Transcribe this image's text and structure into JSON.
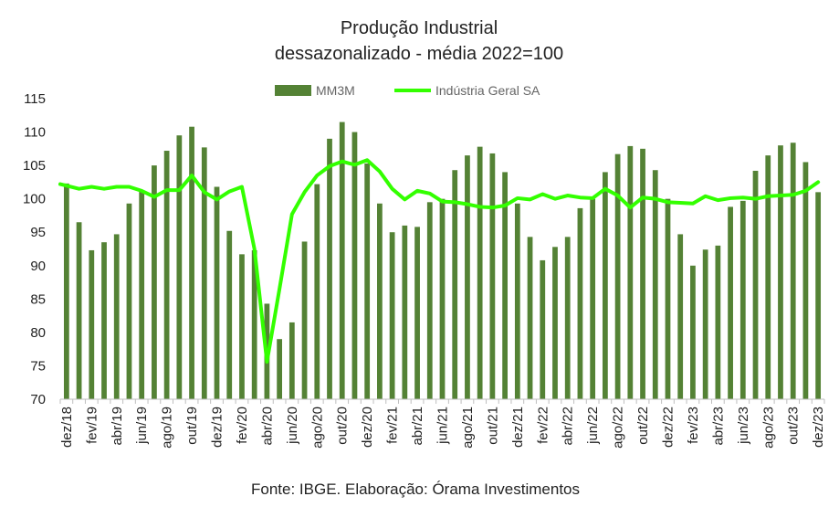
{
  "chart_data": {
    "type": "bar",
    "title": "Produção Industrial",
    "subtitle": "dessazonalizado - média 2022=100",
    "source": "Fonte: IBGE. Elaboração: Órama Investimentos",
    "ylim": [
      70,
      115
    ],
    "yticks": [
      70,
      75,
      80,
      85,
      90,
      95,
      100,
      105,
      110,
      115
    ],
    "grid": false,
    "legend_position": "top",
    "colors": {
      "bar": "#548235",
      "line": "#33ff00"
    },
    "categories": [
      "dez/18",
      "jan/19",
      "fev/19",
      "mar/19",
      "abr/19",
      "mai/19",
      "jun/19",
      "jul/19",
      "ago/19",
      "set/19",
      "out/19",
      "nov/19",
      "dez/19",
      "jan/20",
      "fev/20",
      "mar/20",
      "abr/20",
      "mai/20",
      "jun/20",
      "jul/20",
      "ago/20",
      "set/20",
      "out/20",
      "nov/20",
      "dez/20",
      "jan/21",
      "fev/21",
      "mar/21",
      "abr/21",
      "mai/21",
      "jun/21",
      "jul/21",
      "ago/21",
      "set/21",
      "out/21",
      "nov/21",
      "dez/21",
      "jan/22",
      "fev/22",
      "mar/22",
      "abr/22",
      "mai/22",
      "jun/22",
      "jul/22",
      "ago/22",
      "set/22",
      "out/22",
      "nov/22",
      "dez/22",
      "jan/23",
      "fev/23",
      "mar/23",
      "abr/23",
      "mai/23",
      "jun/23",
      "jul/23",
      "ago/23",
      "set/23",
      "out/23",
      "nov/23",
      "dez/23"
    ],
    "x_tick_labels": [
      "dez/18",
      "fev/19",
      "abr/19",
      "jun/19",
      "ago/19",
      "out/19",
      "dez/19",
      "fev/20",
      "abr/20",
      "jun/20",
      "ago/20",
      "out/20",
      "dez/20",
      "fev/21",
      "abr/21",
      "jun/21",
      "ago/21",
      "out/21",
      "dez/21",
      "fev/22",
      "abr/22",
      "jun/22",
      "ago/22",
      "out/22",
      "dez/22",
      "fev/23",
      "abr/23",
      "jun/23",
      "ago/23",
      "out/23",
      "dez/23"
    ],
    "series": [
      {
        "name": "MM3M",
        "type": "bar",
        "values": [
          102.3,
          96.5,
          92.3,
          93.5,
          94.7,
          99.3,
          101.2,
          105.0,
          107.2,
          109.5,
          110.8,
          107.7,
          101.8,
          95.2,
          91.7,
          92.3,
          84.3,
          79.0,
          81.5,
          93.6,
          102.2,
          109.0,
          111.5,
          110.0,
          105.3,
          99.3,
          95.0,
          96.0,
          95.8,
          99.5,
          100.0,
          104.3,
          106.5,
          107.8,
          106.8,
          104.0,
          99.3,
          94.3,
          90.8,
          92.8,
          94.3,
          98.6,
          100.0,
          104.0,
          106.7,
          107.9,
          107.5,
          104.3,
          100.0,
          94.7,
          90.0,
          92.4,
          93.0,
          98.8,
          99.7,
          104.2,
          106.5,
          108.0,
          108.4,
          105.5,
          101.0
        ]
      },
      {
        "name": "Indústria Geral SA",
        "type": "line",
        "values": [
          102.2,
          101.5,
          101.8,
          101.5,
          101.8,
          101.8,
          101.2,
          100.3,
          101.3,
          101.3,
          103.5,
          101.0,
          99.9,
          101.1,
          101.8,
          92.5,
          75.6,
          86.5,
          97.7,
          101.0,
          103.5,
          104.9,
          105.6,
          105.1,
          105.8,
          104.1,
          101.5,
          99.9,
          101.2,
          100.8,
          99.6,
          99.5,
          99.2,
          98.8,
          98.7,
          99.0,
          100.1,
          99.9,
          100.7,
          100.0,
          100.5,
          100.2,
          100.1,
          101.5,
          100.5,
          98.7,
          100.2,
          100.0,
          99.5,
          99.4,
          99.3,
          100.4,
          99.8,
          100.1,
          100.2,
          100.0,
          100.4,
          100.5,
          100.6,
          101.2,
          102.5
        ]
      }
    ]
  }
}
